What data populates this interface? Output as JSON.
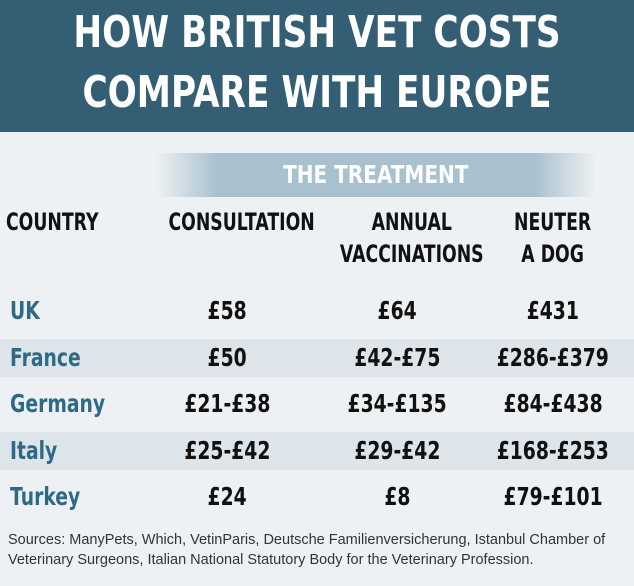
{
  "title": {
    "line1": "HOW BRITISH VET COSTS",
    "line2": "COMPARE WITH EUROPE"
  },
  "colors": {
    "header_bg": "#335e73",
    "band_bg": "#a9c1cf",
    "country_text": "#2e6a86",
    "row_shade": "#dde5ea",
    "page_bg": "#eef1f3"
  },
  "chart_data": {
    "type": "table",
    "group_header": "THE TREATMENT",
    "columns": [
      "COUNTRY",
      "CONSULTATION",
      "ANNUAL\nVACCINATIONS",
      "NEUTER\nA DOG"
    ],
    "rows": [
      {
        "country": "UK",
        "consultation": "£58",
        "vaccinations": "£64",
        "neuter": "£431"
      },
      {
        "country": "France",
        "consultation": "£50",
        "vaccinations": "£42-£75",
        "neuter": "£286-£379"
      },
      {
        "country": "Germany",
        "consultation": "£21-£38",
        "vaccinations": "£34-£135",
        "neuter": "£84-£438"
      },
      {
        "country": "Italy",
        "consultation": "£25-£42",
        "vaccinations": "£29-£42",
        "neuter": "£168-£253"
      },
      {
        "country": "Turkey",
        "consultation": "£24",
        "vaccinations": "£8",
        "neuter": "£79-£101"
      }
    ]
  },
  "sources": "Sources: ManyPets, Which, VetinParis, Deutsche Familienversicherung, Istanbul Chamber of Veterinary Surgeons, Italian National Statutory Body for the Veterinary Profession."
}
